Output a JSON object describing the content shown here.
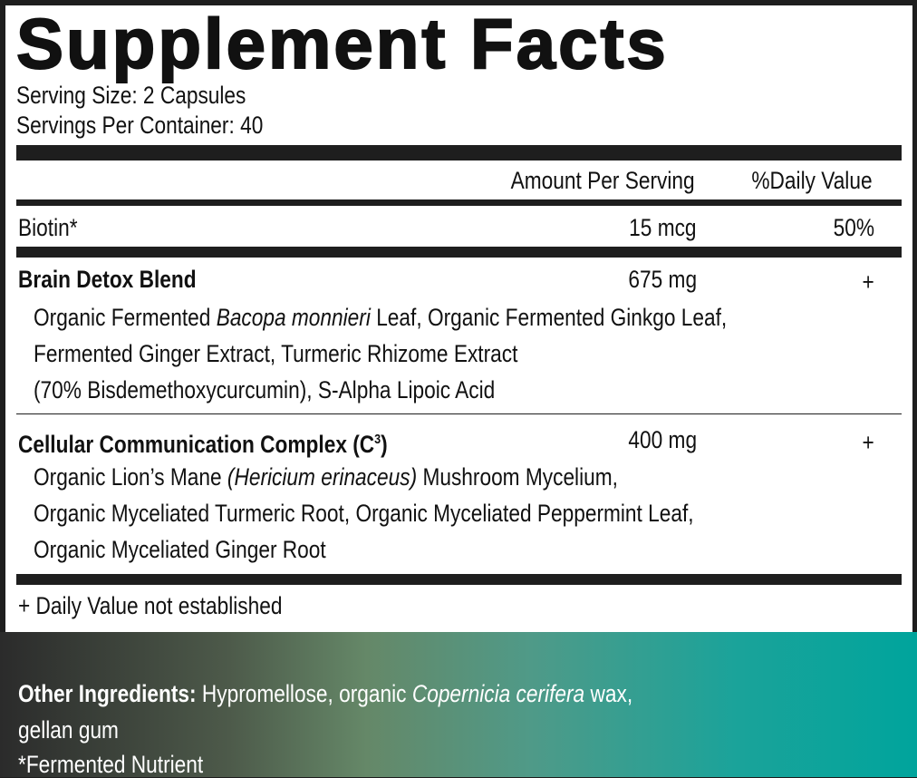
{
  "title": "Supplement Facts",
  "serving_size": "Serving Size: 2 Capsules",
  "servings_per_container": "Servings Per Container: 40",
  "header": {
    "amount": "Amount Per Serving",
    "dv": "%Daily Value"
  },
  "rows": [
    {
      "name": "Biotin*",
      "amount": "15 mcg",
      "dv": "50%"
    },
    {
      "name": "Brain Detox Blend",
      "amount": "675 mg",
      "dv": "+",
      "lines": [
        {
          "pre": "Organic Fermented ",
          "italic": "Bacopa monnieri",
          "post": " Leaf, Organic Fermented Ginkgo Leaf,"
        },
        "Fermented Ginger Extract, Turmeric Rhizome Extract",
        "(70% Bisdemethoxycurcumin), S-Alpha Lipoic Acid"
      ]
    },
    {
      "name": "Cellular Communication Complex (C",
      "name_sup": "3",
      "name_end": ")",
      "amount": "400 mg",
      "dv": "+",
      "lines": [
        {
          "pre": "Organic Lion’s Mane ",
          "italic": "(Hericium erinaceus)",
          "post": " Mushroom Mycelium,"
        },
        "Organic Myceliated Turmeric Root, Organic Myceliated Peppermint Leaf,",
        "Organic Myceliated Ginger Root"
      ]
    }
  ],
  "footnote": "+ Daily Value not established",
  "other": {
    "label": "Other Ingredients:",
    "pre": " Hypromellose, organic ",
    "italic": "Copernicia cerifera",
    "post": " wax,",
    "line2": "gellan gum",
    "line3": "*Fermented Nutrient"
  },
  "colors": {
    "border": "#1e1e1e",
    "gradient_start": "#2b2b2b",
    "gradient_end": "#00a49c"
  }
}
